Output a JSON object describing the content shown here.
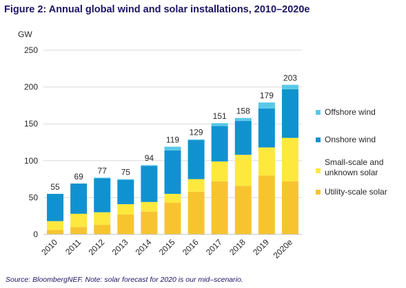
{
  "figure_title": "Figure 2: Annual global wind and solar installations, 2010–2020e",
  "source_note": "Source: BloombergNEF. Note: solar forecast for 2020 is our mid–scenario.",
  "colors": {
    "offshore_wind": "#5bc8e8",
    "onshore_wind": "#1192d0",
    "small_scale_solar": "#fde93d",
    "utility_scale_solar": "#f7c430",
    "text": "#262626",
    "title": "#1b1464",
    "grid": "#d9d9d9"
  },
  "chart_data": {
    "type": "bar",
    "stacked": true,
    "ylabel": "GW",
    "ylim": [
      0,
      250
    ],
    "yticks": [
      0,
      50,
      100,
      150,
      200,
      250
    ],
    "grid": true,
    "legend_position": "right",
    "categories": [
      "2010",
      "2011",
      "2012",
      "2013",
      "2014",
      "2015",
      "2016",
      "2017",
      "2018",
      "2019",
      "2020e"
    ],
    "totals": [
      55,
      69,
      77,
      75,
      94,
      119,
      129,
      151,
      158,
      179,
      203
    ],
    "series": [
      {
        "name": "Utility-scale solar",
        "color_key": "utility_scale_solar",
        "values": [
          6,
          10,
          13,
          27,
          31,
          43,
          58,
          72,
          66,
          80,
          72
        ]
      },
      {
        "name": "Small-scale and unknown solar",
        "color_key": "small_scale_solar",
        "values": [
          12,
          18,
          17,
          14,
          13,
          12,
          17,
          27,
          42,
          38,
          59
        ]
      },
      {
        "name": "Onshore wind",
        "color_key": "onshore_wind",
        "values": [
          37,
          41,
          46,
          33,
          49,
          59,
          53,
          48,
          46,
          53,
          66
        ]
      },
      {
        "name": "Offshore wind",
        "color_key": "offshore_wind",
        "values": [
          0,
          0,
          1,
          1,
          1,
          5,
          1,
          4,
          4,
          8,
          6
        ]
      }
    ]
  }
}
